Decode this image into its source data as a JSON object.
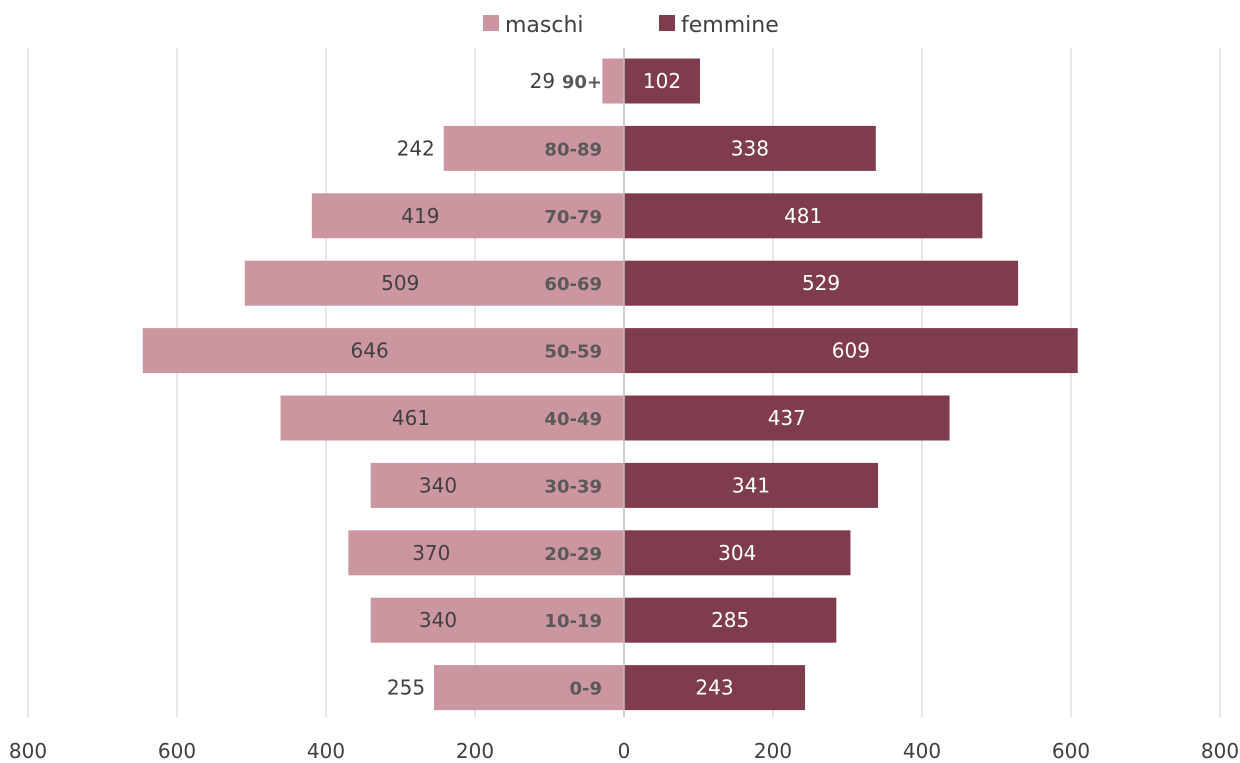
{
  "chart_data": {
    "type": "bar",
    "orientation": "horizontal",
    "categories": [
      "90+",
      "80-89",
      "70-79",
      "60-69",
      "50-59",
      "40-49",
      "30-39",
      "20-29",
      "10-19",
      "0-9"
    ],
    "series": [
      {
        "name": "maschi",
        "values": [
          29,
          242,
          419,
          509,
          646,
          461,
          340,
          370,
          340,
          255
        ]
      },
      {
        "name": "femmine",
        "values": [
          102,
          338,
          481,
          529,
          609,
          437,
          341,
          304,
          285,
          243
        ]
      }
    ],
    "xlim": [
      -800,
      800
    ],
    "x_ticks": [
      -800,
      -600,
      -400,
      -200,
      0,
      200,
      400,
      600,
      800
    ],
    "x_tick_labels": [
      "800",
      "600",
      "400",
      "200",
      "0",
      "200",
      "400",
      "600",
      "800"
    ],
    "grid": true,
    "legend_position": "top-center",
    "colors": {
      "maschi": "#cc96a0",
      "femmine": "#7f3c4c"
    }
  }
}
